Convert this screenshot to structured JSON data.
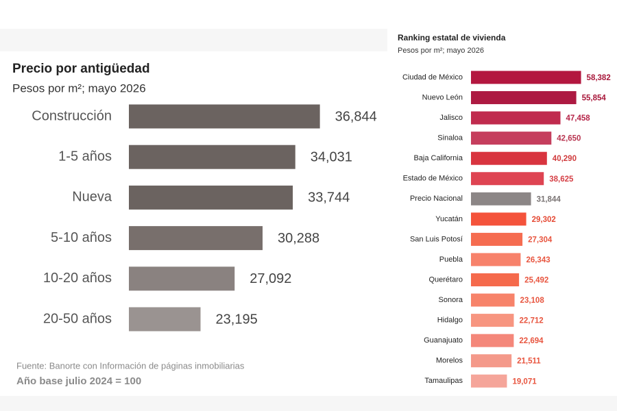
{
  "chart_data": [
    {
      "type": "bar",
      "orientation": "horizontal",
      "title": "Precio por antigüedad",
      "subtitle": "Pesos por m²; mayo 2026",
      "categories": [
        "Construcción",
        "1-5 años",
        "Nueva",
        "5-10 años",
        "10-20 años",
        "20-50 años"
      ],
      "values": [
        36844,
        34031,
        33744,
        30288,
        27092,
        23195
      ],
      "value_labels": [
        "36,844",
        "34,031",
        "33,744",
        "30,288",
        "27,092",
        "23,195"
      ],
      "colors": [
        "#6b6360",
        "#6b6360",
        "#6b6360",
        "#786f6c",
        "#8a8280",
        "#9a9391"
      ],
      "xlim": [
        15000,
        37500
      ],
      "notes": [
        "Fuente: Banorte con Información de páginas inmobiliarias",
        "Año base julio 2024 = 100"
      ]
    },
    {
      "type": "bar",
      "orientation": "horizontal",
      "title": "Ranking estatal de vivienda",
      "subtitle": "Pesos por m²; mayo 2026",
      "categories": [
        "Ciudad de México",
        "Nuevo León",
        "Jalisco",
        "Sinaloa",
        "Baja California",
        "Estado de México",
        "Precio Nacional",
        "Yucatán",
        "San Luis Potosí",
        "Puebla",
        "Querétaro",
        "Sonora",
        "Hidalgo",
        "Guanajuato",
        "Morelos",
        "Tamaulipas"
      ],
      "values": [
        58382,
        55854,
        47458,
        42650,
        40290,
        38625,
        31844,
        29302,
        27304,
        26343,
        25492,
        23108,
        22712,
        22694,
        21511,
        19071
      ],
      "value_labels": [
        "58,382",
        "55,854",
        "47,458",
        "42,650",
        "40,290",
        "38,625",
        "31,844",
        "29,302",
        "27,304",
        "26,343",
        "25,492",
        "23,108",
        "22,712",
        "22,694",
        "21,511",
        "19,071"
      ],
      "colors": [
        "#b3173f",
        "#ad1a42",
        "#c02b4e",
        "#c53e5d",
        "#d8343f",
        "#de4452",
        "#8c8686",
        "#f4533b",
        "#f56c50",
        "#f7826b",
        "#f56a4c",
        "#f7836a",
        "#f79580",
        "#f4877a",
        "#f4998a",
        "#f5a59a"
      ],
      "label_colors": [
        "#a8173a",
        "#a8173a",
        "#b52347",
        "#b83550",
        "#d03b3d",
        "#d53f45",
        "#7a7474",
        "#e54a35",
        "#e8553f",
        "#e8553f",
        "#e8553f",
        "#e8553f",
        "#e8553f",
        "#e8553f",
        "#e8553f",
        "#e8553f"
      ],
      "xlim": [
        0,
        60000
      ]
    }
  ]
}
